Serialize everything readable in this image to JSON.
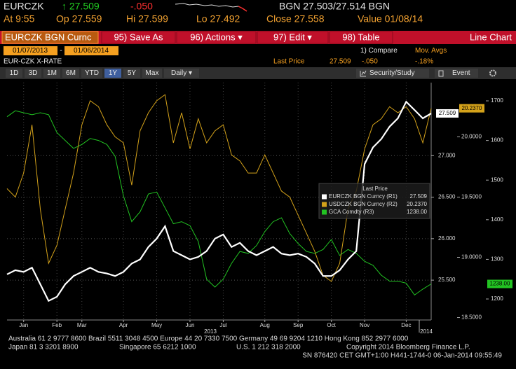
{
  "header": {
    "ticker": "EURCZK",
    "price": "↑ 27.509",
    "change": "-.050",
    "bid_ask": "BGN  27.503/27.514  BGN",
    "stats": [
      "At 9:55",
      "Op 27.559",
      "Hi 27.599",
      "Lo 27.492",
      "Close 27.558",
      "Value 01/08/14"
    ]
  },
  "toolbar": {
    "security": "EURCZK BGN Curnc",
    "buttons": [
      "95) Save As",
      "96) Actions ▾",
      "97) Edit ▾",
      "98) Table"
    ],
    "view": "Line Chart",
    "start_date": "01/07/2013",
    "separator": "-",
    "end_date": "01/06/2014",
    "compare": "1) Compare",
    "mov_avgs": "Mov. Avgs"
  },
  "info": {
    "name": "EUR-CZK X-RATE",
    "field": "Last Price",
    "last": "27.509",
    "change": "-.050",
    "pct_change": "-.18%"
  },
  "ranges": [
    "1D",
    "3D",
    "1M",
    "6M",
    "YTD",
    "1Y",
    "5Y",
    "Max",
    "Daily ▾"
  ],
  "selected_range": "1Y",
  "tools": [
    "Security/Study",
    "Event"
  ],
  "chart_data": {
    "type": "line",
    "categories": [
      null,
      null,
      "Jan",
      null,
      null,
      null,
      "Feb",
      null,
      null,
      "Mar",
      null,
      null,
      null,
      null,
      "Apr",
      null,
      null,
      null,
      "May",
      null,
      null,
      null,
      "Jun",
      null,
      null,
      null,
      "Jul",
      null,
      null,
      null,
      null,
      "Aug",
      null,
      null,
      null,
      "Sep",
      null,
      null,
      null,
      "Oct",
      null,
      null,
      null,
      "Nov",
      null,
      null,
      null,
      null,
      "Dec",
      null,
      null,
      null
    ],
    "year_labels": [
      "2013",
      "2014"
    ],
    "legend_title": "Last Price",
    "legend": "center right",
    "grid": true,
    "ylim": [
      25.02,
      27.88
    ],
    "yticks": [
      {
        "value": 25.5,
        "label": "25.500"
      },
      {
        "value": 26,
        "label": "26.000"
      },
      {
        "value": 26.5,
        "label": "26.500"
      },
      {
        "value": 27,
        "label": "27.000"
      }
    ],
    "y2lim": [
      18.48,
      20.45
    ],
    "y2ticks": [
      {
        "value": 18.5,
        "label": "18.5000"
      },
      {
        "value": 19,
        "label": "19.0000"
      },
      {
        "value": 19.5,
        "label": "19.5000"
      },
      {
        "value": 20,
        "label": "20.0000"
      }
    ],
    "y3lim": [
      1147,
      1746
    ],
    "y3ticks": [
      1200,
      1300,
      1400,
      1500,
      1600,
      1700
    ],
    "series": [
      {
        "name": "EURCZK BGN Curncy (R1)",
        "color": "#ffffff",
        "axis": "y",
        "last_label": "27.509",
        "values": [
          25.57,
          25.62,
          25.6,
          25.65,
          25.45,
          25.25,
          25.3,
          25.45,
          25.55,
          25.6,
          25.65,
          25.6,
          25.58,
          25.55,
          25.6,
          25.7,
          25.75,
          25.9,
          26.0,
          26.15,
          25.85,
          25.8,
          25.75,
          25.78,
          25.85,
          26.0,
          26.05,
          25.9,
          25.95,
          25.85,
          25.8,
          25.85,
          25.9,
          25.82,
          25.8,
          25.82,
          25.78,
          25.7,
          25.55,
          25.55,
          25.62,
          25.75,
          25.85,
          26.9,
          27.1,
          27.2,
          27.35,
          27.45,
          27.65,
          27.55,
          27.45,
          27.509
        ]
      },
      {
        "name": "USDCZK BGN Curncy (R2)",
        "color": "#d4a21a",
        "axis": "y2",
        "last_label": "20.2370",
        "values": [
          19.57,
          19.5,
          19.7,
          20.1,
          19.4,
          18.95,
          19.1,
          19.4,
          19.7,
          20.1,
          20.3,
          20.25,
          20.1,
          20.0,
          19.95,
          19.6,
          20.05,
          20.2,
          20.3,
          20.35,
          19.95,
          20.2,
          19.9,
          20.15,
          19.95,
          20.05,
          20.1,
          19.85,
          19.8,
          19.7,
          19.7,
          19.85,
          19.7,
          19.55,
          19.5,
          19.35,
          19.2,
          19.05,
          18.85,
          18.8,
          18.95,
          19.4,
          19.55,
          19.9,
          20.1,
          20.15,
          20.25,
          20.2,
          20.25,
          20.15,
          19.95,
          20.237
        ]
      },
      {
        "name": "GCA Comdty (R3)",
        "color": "#22c322",
        "axis": "y3",
        "last_label": "1238.00",
        "values": [
          1660,
          1675,
          1670,
          1665,
          1670,
          1665,
          1620,
          1600,
          1580,
          1590,
          1605,
          1600,
          1590,
          1560,
          1460,
          1395,
          1420,
          1465,
          1470,
          1430,
          1390,
          1395,
          1385,
          1345,
          1250,
          1230,
          1250,
          1290,
          1320,
          1315,
          1335,
          1370,
          1395,
          1405,
          1365,
          1340,
          1320,
          1315,
          1325,
          1350,
          1310,
          1325,
          1315,
          1295,
          1285,
          1260,
          1245,
          1245,
          1240,
          1210,
          1225,
          1238
        ]
      }
    ]
  },
  "footer": [
    "Australia 61 2 9777 8600 Brazil 5511 3048 4500 Europe 44 20 7330 7500 Germany 49 69 9204 1210 Hong Kong 852 2977 6000",
    "Japan 81 3 3201 8900",
    "Singapore 65 6212 1000",
    "U.S. 1 212 318 2000",
    "Copyright 2014 Bloomberg Finance L.P.",
    "SN 876420 CET  GMT+1:00 H441-1744-0 06-Jan-2014 09:55:49"
  ]
}
